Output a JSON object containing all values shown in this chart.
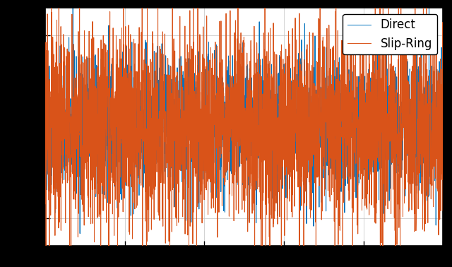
{
  "title": "",
  "xlabel": "",
  "ylabel": "",
  "direct_color": "#0072BD",
  "slipring_color": "#D95319",
  "legend_labels": [
    "Direct",
    "Slip-Ring"
  ],
  "n_samples": 3000,
  "seed_direct": 42,
  "seed_slipring": 123,
  "amplitude_direct": 0.18,
  "amplitude_slipring": 0.28,
  "ylim": [
    -0.65,
    0.65
  ],
  "xlim": [
    0,
    3000
  ],
  "background_color": "#ffffff",
  "outer_background": "#000000",
  "xticks": [
    0,
    600,
    1200,
    1800,
    2400,
    3000
  ],
  "yticks": [
    -0.5,
    0.0,
    0.5
  ],
  "grid_color": "#c0c0c0",
  "linewidth": 0.7,
  "legend_fontsize": 12,
  "legend_loc": "upper right",
  "tick_label_size": 0
}
